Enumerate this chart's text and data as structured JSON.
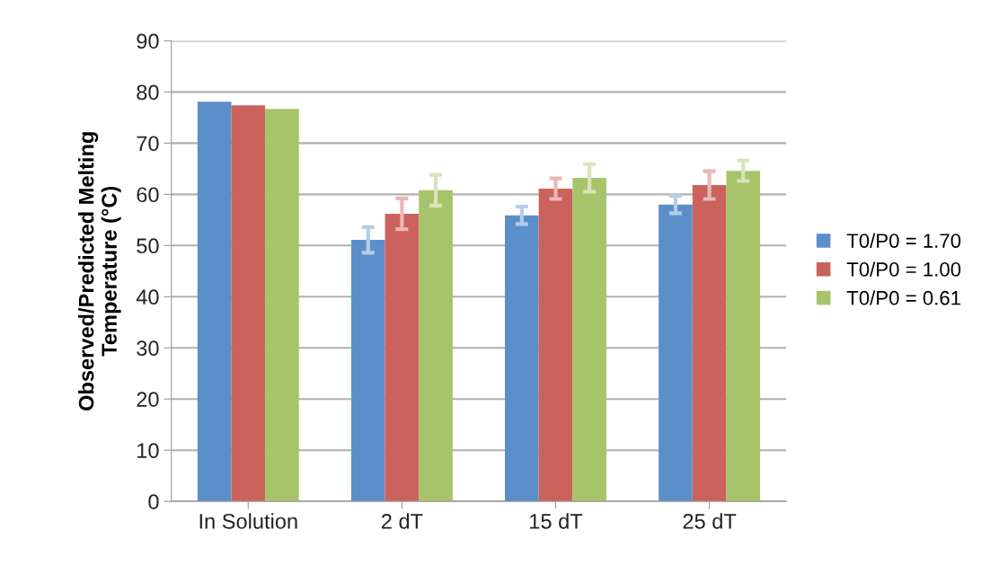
{
  "chart_data": {
    "type": "bar",
    "ylabel": "Observed/Predicted Melting\nTemperature (°C)",
    "categories": [
      "In Solution",
      "2 dT",
      "15 dT",
      "25 dT"
    ],
    "series": [
      {
        "name": "T0/P0 = 1.70",
        "color": "#5b8fc9",
        "values": [
          78.1,
          51.1,
          55.9,
          58.0
        ],
        "errors": [
          null,
          2.5,
          1.7,
          1.7
        ]
      },
      {
        "name": "T0/P0 = 1.00",
        "color": "#cc625c",
        "values": [
          77.4,
          56.2,
          61.1,
          61.8
        ],
        "errors": [
          null,
          3,
          2,
          2.7
        ]
      },
      {
        "name": "T0/P0 = 0.61",
        "color": "#a8c46a",
        "values": [
          76.7,
          60.8,
          63.2,
          64.6
        ],
        "errors": [
          null,
          3,
          2.7,
          2
        ]
      }
    ],
    "ylim": [
      0,
      90
    ],
    "yticks": [
      0,
      10,
      20,
      30,
      40,
      50,
      60,
      70,
      80,
      90
    ],
    "grid": "y",
    "legend": "right"
  }
}
